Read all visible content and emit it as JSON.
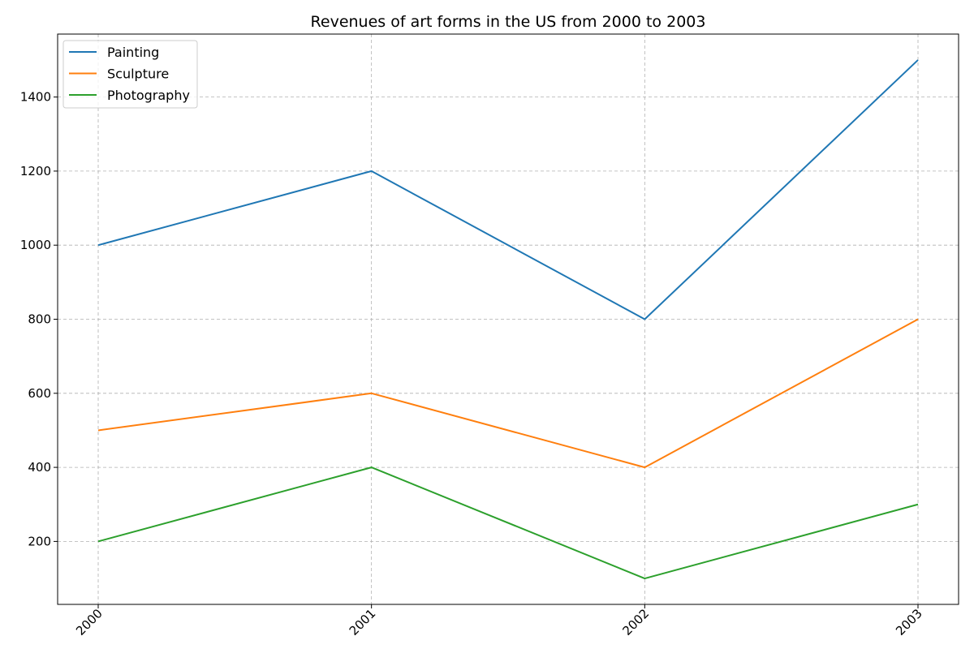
{
  "chart_data": {
    "type": "line",
    "title": "Revenues of art forms in the US from 2000 to 2003",
    "xlabel": "",
    "ylabel": "",
    "categories": [
      "2000",
      "2001",
      "2002",
      "2003"
    ],
    "series": [
      {
        "name": "Painting",
        "values": [
          1000,
          1200,
          800,
          1500
        ],
        "color": "#1f77b4"
      },
      {
        "name": "Sculpture",
        "values": [
          500,
          600,
          400,
          800
        ],
        "color": "#ff7f0e"
      },
      {
        "name": "Photography",
        "values": [
          200,
          400,
          100,
          300
        ],
        "color": "#2ca02c"
      }
    ],
    "ylim": [
      30,
      1570
    ],
    "yticks": [
      200,
      400,
      600,
      800,
      1000,
      1200,
      1400
    ],
    "grid": true,
    "legend": "top-left",
    "x_tick_rotation": -45
  }
}
